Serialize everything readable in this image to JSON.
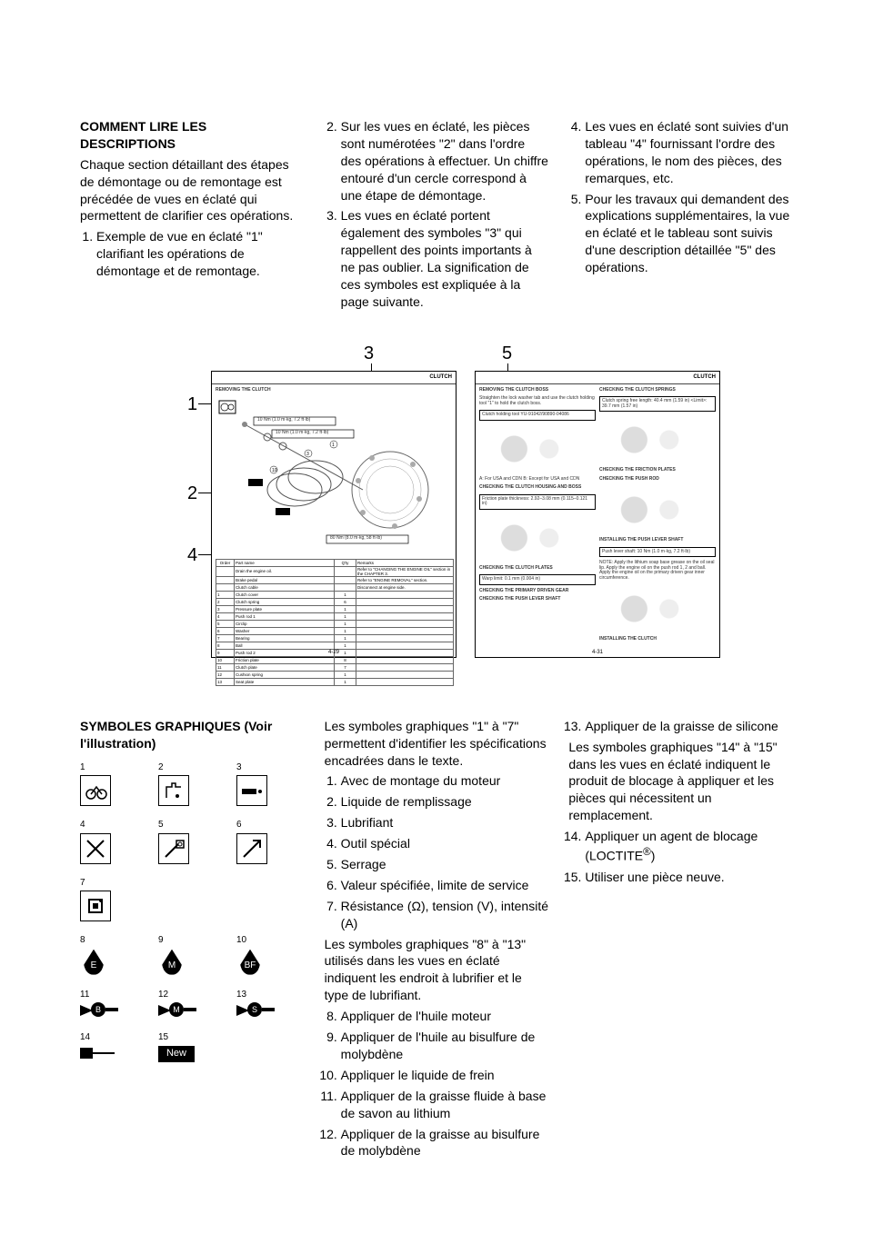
{
  "top": {
    "heading": "COMMENT LIRE LES DESCRIPTIONS",
    "intro": "Chaque section détaillant des étapes de démontage ou de remontage est précédée de vues en éclaté qui permettent de clarifier ces opérations.",
    "li1": "Exemple de vue en éclaté \"1\" clarifiant les opérations de démontage et de remontage.",
    "li2": "Sur les vues en éclaté, les pièces sont numérotées \"2\" dans l'ordre des opérations à effectuer. Un chiffre entouré d'un cercle correspond à une étape de démontage.",
    "li3": "Les vues en éclaté portent également des symboles \"3\" qui rappellent des points importants à ne pas oublier. La signification de ces symboles est expliquée à la page suivante.",
    "li4": "Les vues en éclaté sont suivies d'un tableau \"4\" fournissant l'ordre des opérations, le nom des pièces, des remarques, etc.",
    "li5": "Pour les travaux qui demandent des explications supplémentaires, la vue en éclaté et le tableau sont suivis d'une description détaillée \"5\" des opérations."
  },
  "fig": {
    "callouts": {
      "c1": "1",
      "c2": "2",
      "c3": "3",
      "c4": "4",
      "c5": "5"
    },
    "mini": {
      "title": "CLUTCH",
      "l_heading": "REMOVING THE CLUTCH",
      "torque1": "10 Nm (1.0 m·kg, 7.2 ft·lb)",
      "torque2": "10 Nm (1.0 m·kg, 7.2 ft·lb)",
      "torque3": "80 Nm (8.0 m·kg, 58 ft·lb)",
      "footer_l": "4-29",
      "footer_r": "4-31",
      "table": {
        "headers": [
          "Order",
          "Part name",
          "Q'ty",
          "Remarks"
        ],
        "rows": [
          [
            "",
            "Drain the engine oil.",
            "",
            "Refer to \"CHANGING THE ENGINE OIL\" section in the CHAPTER 3."
          ],
          [
            "",
            "Brake pedal",
            "",
            "Refer to \"ENGINE REMOVAL\" section."
          ],
          [
            "",
            "Clutch cable",
            "",
            "Disconnect at engine side."
          ],
          [
            "1",
            "Clutch cover",
            "1",
            ""
          ],
          [
            "2",
            "Clutch spring",
            "6",
            ""
          ],
          [
            "3",
            "Pressure plate",
            "1",
            ""
          ],
          [
            "4",
            "Push rod 1",
            "1",
            ""
          ],
          [
            "5",
            "Circlip",
            "1",
            ""
          ],
          [
            "6",
            "Washer",
            "1",
            ""
          ],
          [
            "7",
            "Bearing",
            "1",
            ""
          ],
          [
            "8",
            "Ball",
            "1",
            ""
          ],
          [
            "9",
            "Push rod 2",
            "1",
            ""
          ],
          [
            "10",
            "Friction plate",
            "8",
            ""
          ],
          [
            "11",
            "Clutch plate",
            "7",
            ""
          ],
          [
            "12",
            "Cushion spring",
            "1",
            ""
          ],
          [
            "13",
            "Seat plate",
            "1",
            ""
          ]
        ]
      },
      "r": {
        "h1": "REMOVING THE CLUTCH BOSS",
        "p1": "Straighten the lock washer tab and use the clutch holding tool \"1\" to hold the clutch boss.",
        "tool": "Clutch holding tool\nYU-91042/90890-04086",
        "h2": "CHECKING THE CLUTCH HOUSING AND BOSS",
        "p2": "A: For USA and CDN\nB: Except for USA and CDN",
        "spec1": "Friction plate thickness:\n2.92–3.08 mm (0.115–0.121 in)",
        "h3": "CHECKING THE CLUTCH SPRINGS",
        "spec2": "Clutch spring free length:\n40.4 mm (1.59 in)\n<Limit>: 39.7 mm (1.57 in)",
        "h4": "CHECKING THE FRICTION PLATES",
        "h5": "CHECKING THE CLUTCH PLATES",
        "spec3": "Warp limit:\n0.1 mm (0.004 in)",
        "h6": "CHECKING THE PRIMARY DRIVEN GEAR",
        "h7": "CHECKING THE PUSH LEVER SHAFT",
        "h8": "CHECKING THE PUSH ROD",
        "h9": "INSTALLING THE PUSH LEVER SHAFT",
        "spec4": "Push lever shaft:\n10 Nm (1.0 m·kg, 7.2 ft·lb)",
        "h10": "INSTALLING THE CLUTCH",
        "note": "NOTE:\nApply the lithium soap base grease on the oil seal lip.\nApply the engine oil on the push rod 1, 2 and ball.\nApply the engine oil on the primary driven gear inner circumference."
      }
    }
  },
  "bottom": {
    "heading": "SYMBOLES GRAPHIQUES (Voir l'illustration)",
    "mid_intro": "Les symboles graphiques \"1\" à \"7\" permettent d'identifier les spécifications encadrées dans le texte.",
    "m1": "Avec de montage du moteur",
    "m2": "Liquide de remplissage",
    "m3": "Lubrifiant",
    "m4": "Outil spécial",
    "m5": "Serrage",
    "m6": "Valeur spécifiée, limite de service",
    "m7": "Résistance (Ω), tension (V), intensité (A)",
    "mid_intro2": "Les symboles graphiques \"8\" à \"13\" utilisés dans les vues en éclaté indiquent les endroit à lubrifier et le type de lubrifiant.",
    "m8": "Appliquer de l'huile moteur",
    "m9": "Appliquer de l'huile au bisulfure de molybdène",
    "m10": "Appliquer le liquide de frein",
    "m11": "Appliquer de la graisse fluide à base de savon au lithium",
    "m12": "Appliquer de la graisse au bisulfure de molybdène",
    "m13": "Appliquer de la graisse de silicone",
    "right_intro": "Les symboles graphiques \"14\" à \"15\" dans les vues en éclaté indiquent le produit de blocage à appliquer et les pièces qui nécessitent un remplacement.",
    "m14_a": "Appliquer un agent de blocage (LOCTITE",
    "m14_b": ")",
    "m15": "Utiliser une pièce neuve.",
    "symlabels": {
      "n1": "1",
      "n2": "2",
      "n3": "3",
      "n4": "4",
      "n5": "5",
      "n6": "6",
      "n7": "7",
      "n8": "8",
      "n9": "9",
      "n10": "10",
      "n11": "11",
      "n12": "12",
      "n13": "13",
      "n14": "14",
      "n15": "15",
      "e": "E",
      "m": "M",
      "bf": "BF",
      "b": "B",
      "mm": "M",
      "s": "S",
      "new": "New"
    }
  }
}
